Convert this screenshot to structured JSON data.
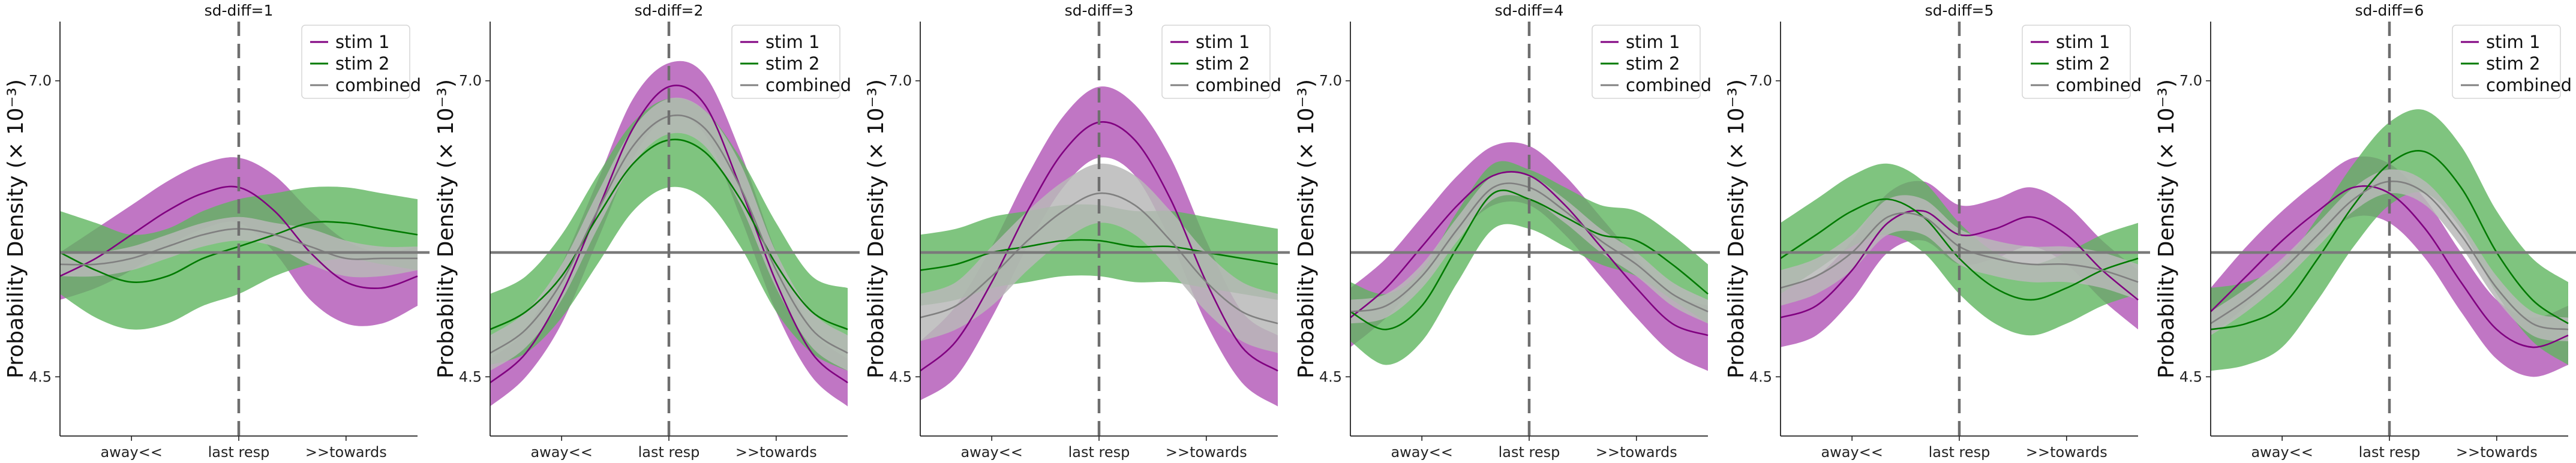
{
  "colors": {
    "stim1": "#800080",
    "stim2": "#007a00",
    "combined": "#808080",
    "stim1_band": "#b054b5",
    "stim2_band": "#5fb55f",
    "combined_band": "#b8b8b8"
  },
  "chart_data": [
    {
      "type": "line",
      "title": "sd-diff=1",
      "ylabel": "Probability Density (× 10⁻³)",
      "x": [
        0,
        0.1,
        0.2,
        0.3,
        0.4,
        0.5,
        0.6,
        0.7,
        0.8,
        0.9,
        1.0
      ],
      "xtick_labels": [
        "away<<",
        "last resp",
        ">>towards"
      ],
      "xtick_positions": [
        0.2,
        0.5,
        0.8
      ],
      "ytick_labels": [
        "4.5",
        "7.0"
      ],
      "ytick_values": [
        4.5,
        7.0
      ],
      "ylim": [
        4.0,
        7.5
      ],
      "hline": 5.55,
      "vline": 0.5,
      "series": [
        {
          "name": "stim 1",
          "values": [
            5.35,
            5.5,
            5.7,
            5.9,
            6.05,
            6.1,
            5.9,
            5.55,
            5.3,
            5.25,
            5.35
          ],
          "lower": [
            5.15,
            5.25,
            5.4,
            5.6,
            5.75,
            5.8,
            5.55,
            5.15,
            4.95,
            4.95,
            5.1
          ],
          "upper": [
            5.55,
            5.75,
            5.95,
            6.15,
            6.3,
            6.35,
            6.2,
            5.9,
            5.65,
            5.55,
            5.6
          ]
        },
        {
          "name": "stim 2",
          "values": [
            5.55,
            5.4,
            5.3,
            5.35,
            5.5,
            5.6,
            5.7,
            5.8,
            5.8,
            5.75,
            5.7
          ],
          "lower": [
            5.2,
            5.0,
            4.9,
            4.95,
            5.1,
            5.2,
            5.35,
            5.45,
            5.5,
            5.45,
            5.4
          ],
          "upper": [
            5.9,
            5.8,
            5.7,
            5.75,
            5.9,
            6.0,
            6.05,
            6.1,
            6.1,
            6.05,
            6.0
          ]
        },
        {
          "name": "combined",
          "values": [
            5.45,
            5.45,
            5.5,
            5.6,
            5.7,
            5.75,
            5.7,
            5.6,
            5.5,
            5.5,
            5.5
          ],
          "lower": [
            5.35,
            5.35,
            5.4,
            5.5,
            5.6,
            5.65,
            5.6,
            5.45,
            5.35,
            5.35,
            5.4
          ],
          "upper": [
            5.55,
            5.55,
            5.6,
            5.7,
            5.8,
            5.85,
            5.8,
            5.75,
            5.65,
            5.6,
            5.6
          ]
        }
      ],
      "legend": [
        "stim 1",
        "stim 2",
        "combined"
      ],
      "legend_loc": "top-right"
    },
    {
      "type": "line",
      "title": "sd-diff=2",
      "ylabel": "Probability Density (× 10⁻³)",
      "x": [
        0,
        0.1,
        0.2,
        0.3,
        0.4,
        0.5,
        0.6,
        0.7,
        0.8,
        0.9,
        1.0
      ],
      "xtick_labels": [
        "away<<",
        "last resp",
        ">>towards"
      ],
      "xtick_positions": [
        0.2,
        0.5,
        0.8
      ],
      "ytick_labels": [
        "4.5",
        "7.0"
      ],
      "ytick_values": [
        4.5,
        7.0
      ],
      "ylim": [
        4.0,
        7.5
      ],
      "hline": 5.55,
      "vline": 0.5,
      "series": [
        {
          "name": "stim 1",
          "values": [
            4.45,
            4.7,
            5.2,
            5.9,
            6.6,
            6.95,
            6.8,
            6.1,
            5.3,
            4.7,
            4.45
          ],
          "lower": [
            4.25,
            4.5,
            4.95,
            5.65,
            6.35,
            6.7,
            6.55,
            5.85,
            5.05,
            4.5,
            4.25
          ],
          "upper": [
            4.65,
            4.9,
            5.45,
            6.15,
            6.85,
            7.15,
            7.05,
            6.4,
            5.55,
            4.9,
            4.65
          ]
        },
        {
          "name": "stim 2",
          "values": [
            4.9,
            5.05,
            5.35,
            5.85,
            6.3,
            6.5,
            6.4,
            6.0,
            5.45,
            5.05,
            4.9
          ],
          "lower": [
            4.6,
            4.7,
            5.0,
            5.45,
            5.9,
            6.1,
            6.0,
            5.6,
            5.05,
            4.7,
            4.55
          ],
          "upper": [
            5.2,
            5.35,
            5.7,
            6.2,
            6.65,
            6.85,
            6.75,
            6.35,
            5.8,
            5.35,
            5.25
          ]
        },
        {
          "name": "combined",
          "values": [
            4.7,
            4.9,
            5.3,
            5.9,
            6.45,
            6.7,
            6.6,
            6.1,
            5.4,
            4.9,
            4.7
          ],
          "lower": [
            4.55,
            4.75,
            5.15,
            5.75,
            6.3,
            6.55,
            6.45,
            5.95,
            5.25,
            4.75,
            4.55
          ],
          "upper": [
            4.85,
            5.05,
            5.45,
            6.05,
            6.6,
            6.85,
            6.75,
            6.3,
            5.55,
            5.05,
            4.85
          ]
        }
      ],
      "legend": [
        "stim 1",
        "stim 2",
        "combined"
      ],
      "legend_loc": "top-right"
    },
    {
      "type": "line",
      "title": "sd-diff=3",
      "ylabel": "Probability Density (× 10⁻³)",
      "x": [
        0,
        0.1,
        0.2,
        0.3,
        0.4,
        0.5,
        0.6,
        0.7,
        0.8,
        0.9,
        1.0
      ],
      "xtick_labels": [
        "away<<",
        "last resp",
        ">>towards"
      ],
      "xtick_positions": [
        0.2,
        0.5,
        0.8
      ],
      "ytick_labels": [
        "4.5",
        "7.0"
      ],
      "ytick_values": [
        4.5,
        7.0
      ],
      "ylim": [
        4.0,
        7.5
      ],
      "hline": 5.55,
      "vline": 0.5,
      "series": [
        {
          "name": "stim 1",
          "values": [
            4.55,
            4.8,
            5.3,
            5.9,
            6.4,
            6.65,
            6.5,
            6.0,
            5.3,
            4.75,
            4.55
          ],
          "lower": [
            4.3,
            4.5,
            5.0,
            5.6,
            6.1,
            6.35,
            6.2,
            5.65,
            4.95,
            4.45,
            4.25
          ],
          "upper": [
            4.8,
            5.1,
            5.6,
            6.2,
            6.7,
            6.95,
            6.8,
            6.35,
            5.65,
            5.05,
            4.85
          ]
        },
        {
          "name": "stim 2",
          "values": [
            5.4,
            5.45,
            5.55,
            5.6,
            5.65,
            5.65,
            5.6,
            5.6,
            5.55,
            5.5,
            5.45
          ],
          "lower": [
            5.1,
            5.15,
            5.25,
            5.3,
            5.35,
            5.35,
            5.3,
            5.3,
            5.25,
            5.2,
            5.15
          ],
          "upper": [
            5.7,
            5.75,
            5.85,
            5.9,
            5.95,
            5.95,
            5.9,
            5.9,
            5.85,
            5.8,
            5.75
          ]
        },
        {
          "name": "combined",
          "values": [
            5.0,
            5.1,
            5.35,
            5.65,
            5.9,
            6.05,
            5.95,
            5.65,
            5.3,
            5.05,
            4.95
          ],
          "lower": [
            4.8,
            4.9,
            5.1,
            5.4,
            5.65,
            5.8,
            5.7,
            5.4,
            5.05,
            4.8,
            4.7
          ],
          "upper": [
            5.2,
            5.3,
            5.6,
            5.9,
            6.15,
            6.3,
            6.2,
            5.9,
            5.55,
            5.3,
            5.2
          ]
        }
      ],
      "legend": [
        "stim 1",
        "stim 2",
        "combined"
      ],
      "legend_loc": "top-right"
    },
    {
      "type": "line",
      "title": "sd-diff=4",
      "ylabel": "Probability Density (× 10⁻³)",
      "x": [
        0,
        0.1,
        0.2,
        0.3,
        0.4,
        0.5,
        0.6,
        0.7,
        0.8,
        0.9,
        1.0
      ],
      "xtick_labels": [
        "away<<",
        "last resp",
        ">>towards"
      ],
      "xtick_positions": [
        0.2,
        0.5,
        0.8
      ],
      "ytick_labels": [
        "4.5",
        "7.0"
      ],
      "ytick_values": [
        4.5,
        7.0
      ],
      "ylim": [
        4.0,
        7.5
      ],
      "hline": 5.55,
      "vline": 0.5,
      "series": [
        {
          "name": "stim 1",
          "values": [
            5.0,
            5.25,
            5.6,
            5.95,
            6.2,
            6.2,
            5.95,
            5.6,
            5.25,
            4.95,
            4.85
          ],
          "lower": [
            4.75,
            5.0,
            5.35,
            5.7,
            5.95,
            5.95,
            5.7,
            5.35,
            5.0,
            4.7,
            4.55
          ],
          "upper": [
            5.25,
            5.5,
            5.85,
            6.2,
            6.45,
            6.45,
            6.2,
            5.85,
            5.5,
            5.2,
            5.1
          ]
        },
        {
          "name": "stim 2",
          "values": [
            5.05,
            4.9,
            5.1,
            5.6,
            6.05,
            6.0,
            5.85,
            5.7,
            5.65,
            5.45,
            5.2
          ],
          "lower": [
            4.8,
            4.6,
            4.8,
            5.3,
            5.75,
            5.75,
            5.6,
            5.45,
            5.35,
            5.15,
            4.95
          ],
          "upper": [
            5.3,
            5.2,
            5.4,
            5.9,
            6.3,
            6.25,
            6.1,
            5.95,
            5.9,
            5.7,
            5.45
          ]
        },
        {
          "name": "combined",
          "values": [
            5.05,
            5.1,
            5.35,
            5.75,
            6.1,
            6.1,
            5.9,
            5.65,
            5.45,
            5.2,
            5.05
          ],
          "lower": [
            4.95,
            5.0,
            5.25,
            5.65,
            6.0,
            6.0,
            5.8,
            5.55,
            5.35,
            5.1,
            4.95
          ],
          "upper": [
            5.15,
            5.2,
            5.45,
            5.85,
            6.2,
            6.2,
            6.0,
            5.75,
            5.55,
            5.3,
            5.15
          ]
        }
      ],
      "legend": [
        "stim 1",
        "stim 2",
        "combined"
      ],
      "legend_loc": "top-right"
    },
    {
      "type": "line",
      "title": "sd-diff=5",
      "ylabel": "Probability Density (× 10⁻³)",
      "x": [
        0,
        0.1,
        0.2,
        0.3,
        0.4,
        0.5,
        0.6,
        0.7,
        0.8,
        0.9,
        1.0
      ],
      "xtick_labels": [
        "away<<",
        "last resp",
        ">>towards"
      ],
      "xtick_positions": [
        0.2,
        0.5,
        0.8
      ],
      "ytick_labels": [
        "4.5",
        "7.0"
      ],
      "ytick_values": [
        4.5,
        7.0
      ],
      "ylim": [
        4.0,
        7.5
      ],
      "hline": 5.55,
      "vline": 0.5,
      "series": [
        {
          "name": "stim 1",
          "values": [
            5.0,
            5.1,
            5.4,
            5.8,
            5.9,
            5.7,
            5.75,
            5.85,
            5.7,
            5.4,
            5.15
          ],
          "lower": [
            4.75,
            4.85,
            5.15,
            5.55,
            5.65,
            5.45,
            5.5,
            5.6,
            5.45,
            5.15,
            4.9
          ],
          "upper": [
            5.25,
            5.35,
            5.65,
            6.05,
            6.15,
            5.95,
            6.0,
            6.1,
            5.95,
            5.65,
            5.4
          ]
        },
        {
          "name": "stim 2",
          "values": [
            5.5,
            5.7,
            5.9,
            6.0,
            5.85,
            5.5,
            5.25,
            5.15,
            5.25,
            5.4,
            5.5
          ],
          "lower": [
            5.2,
            5.4,
            5.6,
            5.7,
            5.55,
            5.2,
            4.95,
            4.85,
            4.95,
            5.1,
            5.2
          ],
          "upper": [
            5.8,
            6.0,
            6.2,
            6.3,
            6.15,
            5.8,
            5.55,
            5.45,
            5.55,
            5.7,
            5.8
          ]
        },
        {
          "name": "combined",
          "values": [
            5.25,
            5.35,
            5.55,
            5.85,
            5.85,
            5.6,
            5.5,
            5.45,
            5.45,
            5.4,
            5.3
          ],
          "lower": [
            5.1,
            5.2,
            5.4,
            5.7,
            5.7,
            5.45,
            5.35,
            5.3,
            5.3,
            5.25,
            5.15
          ],
          "upper": [
            5.4,
            5.5,
            5.7,
            6.0,
            6.0,
            5.75,
            5.65,
            5.6,
            5.6,
            5.55,
            5.45
          ]
        }
      ],
      "legend": [
        "stim 1",
        "stim 2",
        "combined"
      ],
      "legend_loc": "top-right"
    },
    {
      "type": "line",
      "title": "sd-diff=6",
      "ylabel": "Probability Density (× 10⁻³)",
      "x": [
        0,
        0.1,
        0.2,
        0.3,
        0.4,
        0.5,
        0.6,
        0.7,
        0.8,
        0.9,
        1.0
      ],
      "xtick_labels": [
        "away<<",
        "last resp",
        ">>towards"
      ],
      "xtick_positions": [
        0.2,
        0.5,
        0.8
      ],
      "ytick_labels": [
        "4.5",
        "7.0"
      ],
      "ytick_values": [
        4.5,
        7.0
      ],
      "ylim": [
        4.0,
        7.5
      ],
      "hline": 5.55,
      "vline": 0.5,
      "series": [
        {
          "name": "stim 1",
          "values": [
            5.05,
            5.35,
            5.65,
            5.9,
            6.1,
            6.05,
            5.75,
            5.3,
            4.9,
            4.75,
            4.85
          ],
          "lower": [
            4.85,
            5.1,
            5.4,
            5.65,
            5.85,
            5.8,
            5.5,
            5.05,
            4.65,
            4.5,
            4.6
          ],
          "upper": [
            5.25,
            5.6,
            5.9,
            6.15,
            6.35,
            6.3,
            6.0,
            5.55,
            5.15,
            5.0,
            5.1
          ]
        },
        {
          "name": "stim 2",
          "values": [
            4.9,
            4.95,
            5.1,
            5.5,
            5.95,
            6.3,
            6.4,
            6.1,
            5.55,
            5.15,
            4.95
          ],
          "lower": [
            4.55,
            4.6,
            4.75,
            5.15,
            5.6,
            5.95,
            6.05,
            5.75,
            5.2,
            4.8,
            4.6
          ],
          "upper": [
            5.25,
            5.3,
            5.45,
            5.85,
            6.3,
            6.65,
            6.75,
            6.45,
            5.9,
            5.5,
            5.3
          ]
        },
        {
          "name": "combined",
          "values": [
            4.95,
            5.15,
            5.4,
            5.7,
            6.0,
            6.15,
            6.05,
            5.7,
            5.25,
            4.95,
            4.9
          ],
          "lower": [
            4.85,
            5.05,
            5.3,
            5.6,
            5.9,
            6.05,
            5.95,
            5.6,
            5.15,
            4.85,
            4.8
          ],
          "upper": [
            5.05,
            5.25,
            5.5,
            5.8,
            6.1,
            6.25,
            6.15,
            5.8,
            5.35,
            5.05,
            5.0
          ]
        }
      ],
      "legend": [
        "stim 1",
        "stim 2",
        "combined"
      ],
      "legend_loc": "top-right"
    }
  ]
}
